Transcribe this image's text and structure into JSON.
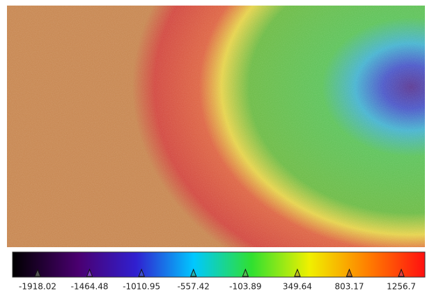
{
  "colorbar": {
    "range": [
      -2137,
      1463
    ],
    "ticks": [
      -1918.02,
      -1464.48,
      -1010.95,
      -557.42,
      -103.89,
      349.64,
      803.17,
      1256.7
    ]
  }
}
